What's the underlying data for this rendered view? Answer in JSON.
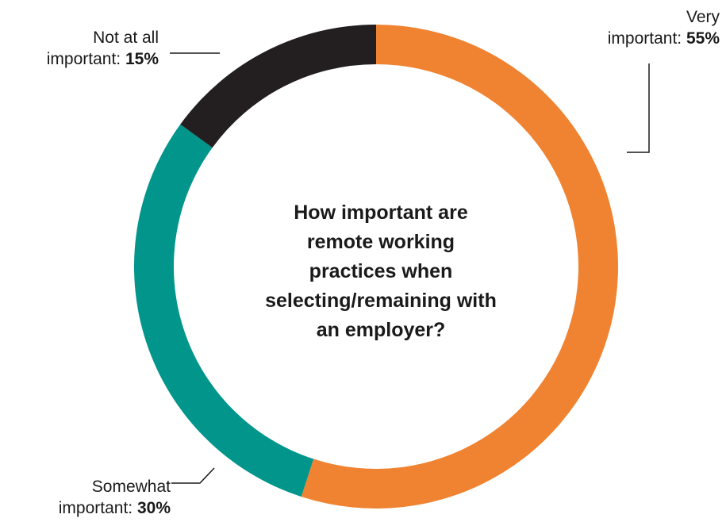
{
  "chart_data": {
    "type": "pie",
    "title": "How important are remote working practices when selecting/remaining with an employer?",
    "categories": [
      "Very important",
      "Somewhat important",
      "Not at all important"
    ],
    "values": [
      55,
      30,
      15
    ],
    "unit": "%",
    "colors": [
      "#F08331",
      "#01958C",
      "#231F20"
    ],
    "labels": {
      "very": {
        "line1": "Very",
        "line2": "important:",
        "value": "55%"
      },
      "somewhat": {
        "line1": "Somewhat",
        "line2": "important:",
        "value": "30%"
      },
      "not": {
        "line1": "Not at all",
        "line2": "important:",
        "value": "15%"
      }
    },
    "legend": "none",
    "grid": false
  }
}
